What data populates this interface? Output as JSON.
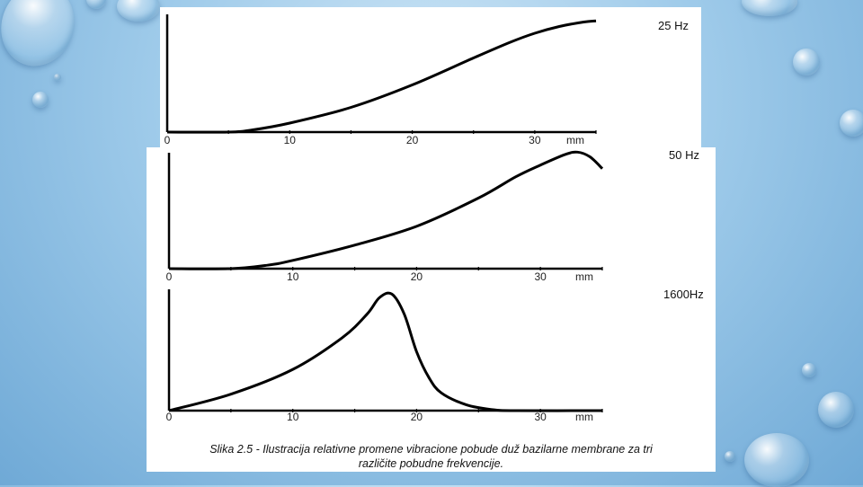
{
  "chart_data": [
    {
      "type": "line",
      "title": "25 Hz",
      "xlabel": "mm",
      "ylabel": "",
      "xlim": [
        0,
        35
      ],
      "ylim": [
        0,
        1
      ],
      "x_ticks": [
        "0",
        "10",
        "20",
        "30"
      ],
      "series": [
        {
          "name": "25 Hz",
          "x": [
            0,
            5,
            7,
            10,
            15,
            20,
            25,
            28,
            30,
            32,
            34,
            35
          ],
          "y": [
            0,
            0,
            0.02,
            0.08,
            0.22,
            0.42,
            0.66,
            0.8,
            0.88,
            0.94,
            0.98,
            0.99
          ]
        }
      ]
    },
    {
      "type": "line",
      "title": "50 Hz",
      "xlabel": "mm",
      "ylabel": "",
      "xlim": [
        0,
        35
      ],
      "ylim": [
        0,
        1
      ],
      "x_ticks": [
        "0",
        "10",
        "20",
        "30"
      ],
      "series": [
        {
          "name": "50 Hz",
          "x": [
            0,
            5,
            8,
            10,
            15,
            20,
            25,
            28,
            30,
            32,
            33,
            34,
            35
          ],
          "y": [
            0,
            0,
            0.03,
            0.07,
            0.2,
            0.36,
            0.6,
            0.78,
            0.88,
            0.97,
            0.99,
            0.95,
            0.85
          ]
        }
      ]
    },
    {
      "type": "line",
      "title": "1600Hz",
      "xlabel": "mm",
      "ylabel": "",
      "xlim": [
        0,
        35
      ],
      "ylim": [
        0,
        1
      ],
      "x_ticks": [
        "0",
        "10",
        "20",
        "30"
      ],
      "series": [
        {
          "name": "1600Hz",
          "x": [
            0,
            5,
            10,
            14,
            16,
            17,
            18,
            19,
            20,
            21,
            22,
            24,
            26,
            28,
            35
          ],
          "y": [
            0,
            0.14,
            0.35,
            0.62,
            0.82,
            0.96,
            0.99,
            0.82,
            0.5,
            0.28,
            0.15,
            0.05,
            0.01,
            0,
            0
          ]
        }
      ]
    }
  ],
  "caption": {
    "line1": "Slika 2.5 - Ilustracija relativne promene vibracione pobude duž bazilarne membrane za tri",
    "line2": "različite pobudne frekvencije."
  }
}
